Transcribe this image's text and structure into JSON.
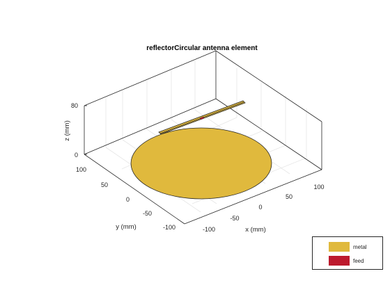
{
  "title": "reflectorCircular antenna element",
  "axes": {
    "x_label": "x (mm)",
    "y_label": "y (mm)",
    "z_label": "z (mm)",
    "x_ticks": [
      "-100",
      "-50",
      "0",
      "50",
      "100"
    ],
    "y_ticks": [
      "100",
      "50",
      "0",
      "-50",
      "-100"
    ],
    "z_ticks": [
      "80",
      "0"
    ]
  },
  "legend": {
    "metal_label": "metal",
    "feed_label": "feed"
  },
  "colors": {
    "metal": "#E0B93D",
    "feed": "#BD1A2E"
  }
}
